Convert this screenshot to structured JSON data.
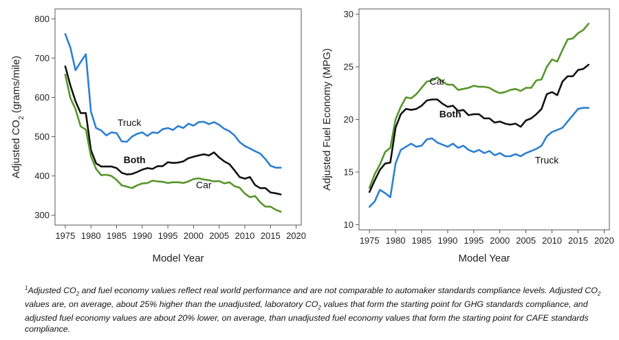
{
  "chart_data": [
    {
      "type": "line",
      "title": "",
      "xlabel": "Model Year",
      "ylabel_html": "Adjusted CO<tspan baseline-shift=\"sub\" font-size=\"10\">2</tspan> (grams/mile)",
      "xlim": [
        1973,
        2021
      ],
      "ylim": [
        275,
        825
      ],
      "xticks": [
        1975,
        1980,
        1985,
        1990,
        1995,
        2000,
        2005,
        2010,
        2015,
        2020
      ],
      "yticks": [
        300,
        400,
        500,
        600,
        700,
        800
      ],
      "grid": false,
      "x": [
        1975,
        1976,
        1977,
        1978,
        1979,
        1980,
        1981,
        1982,
        1983,
        1984,
        1985,
        1986,
        1987,
        1988,
        1989,
        1990,
        1991,
        1992,
        1993,
        1994,
        1995,
        1996,
        1997,
        1998,
        1999,
        2000,
        2001,
        2002,
        2003,
        2004,
        2005,
        2006,
        2007,
        2008,
        2009,
        2010,
        2011,
        2012,
        2013,
        2014,
        2015,
        2016,
        2017
      ],
      "series": [
        {
          "name": "Truck",
          "color": "#2b7fd1",
          "label_year": 1987.5,
          "label_value": 527,
          "bold": false,
          "values": [
            761,
            726,
            669,
            690,
            710,
            564,
            522,
            516,
            503,
            511,
            509,
            488,
            487,
            500,
            507,
            511,
            502,
            511,
            509,
            519,
            522,
            517,
            527,
            522,
            533,
            528,
            537,
            538,
            532,
            537,
            530,
            520,
            514,
            503,
            486,
            476,
            470,
            463,
            457,
            443,
            426,
            421,
            421
          ]
        },
        {
          "name": "Both",
          "color": "#111111",
          "label_year": 1988.5,
          "label_value": 433,
          "bold": true,
          "values": [
            679,
            630,
            590,
            560,
            560,
            466,
            432,
            424,
            424,
            424,
            420,
            408,
            404,
            405,
            410,
            416,
            420,
            418,
            425,
            425,
            435,
            433,
            434,
            437,
            445,
            449,
            452,
            455,
            452,
            460,
            447,
            437,
            430,
            414,
            397,
            393,
            397,
            377,
            369,
            369,
            358,
            356,
            353
          ]
        },
        {
          "name": "Car",
          "color": "#55952a",
          "label_year": 2002,
          "label_value": 369,
          "bold": false,
          "values": [
            658,
            598,
            570,
            526,
            518,
            450,
            418,
            402,
            403,
            400,
            390,
            376,
            373,
            369,
            376,
            381,
            382,
            388,
            386,
            385,
            382,
            384,
            384,
            382,
            386,
            392,
            394,
            391,
            389,
            386,
            387,
            381,
            384,
            374,
            370,
            355,
            346,
            349,
            333,
            322,
            322,
            314,
            309
          ]
        }
      ]
    },
    {
      "type": "line",
      "title": "",
      "xlabel": "Model Year",
      "ylabel": "Adjusted Fuel Economy (MPG)",
      "xlim": [
        1973,
        2021
      ],
      "ylim": [
        9.5,
        30.5
      ],
      "xticks": [
        1975,
        1980,
        1985,
        1990,
        1995,
        2000,
        2005,
        2010,
        2015,
        2020
      ],
      "yticks": [
        10,
        15,
        20,
        25,
        30
      ],
      "grid": false,
      "x": [
        1975,
        1976,
        1977,
        1978,
        1979,
        1980,
        1981,
        1982,
        1983,
        1984,
        1985,
        1986,
        1987,
        1988,
        1989,
        1990,
        1991,
        1992,
        1993,
        1994,
        1995,
        1996,
        1997,
        1998,
        1999,
        2000,
        2001,
        2002,
        2003,
        2004,
        2005,
        2006,
        2007,
        2008,
        2009,
        2010,
        2011,
        2012,
        2013,
        2014,
        2015,
        2016,
        2017
      ],
      "series": [
        {
          "name": "Car",
          "color": "#55952a",
          "label_year": 1988,
          "label_value": 23.3,
          "bold": false,
          "values": [
            13.5,
            14.8,
            15.7,
            16.9,
            17.3,
            20.0,
            21.2,
            22.1,
            22.0,
            22.4,
            23.0,
            23.6,
            23.7,
            24.0,
            23.6,
            23.3,
            23.3,
            22.8,
            22.9,
            23.0,
            23.2,
            23.1,
            23.1,
            23.0,
            22.7,
            22.5,
            22.6,
            22.8,
            22.9,
            22.7,
            23.0,
            23.0,
            23.7,
            23.8,
            25.0,
            25.7,
            25.5,
            26.6,
            27.6,
            27.7,
            28.2,
            28.5,
            29.1
          ]
        },
        {
          "name": "Both",
          "color": "#111111",
          "label_year": 1990.5,
          "label_value": 20.2,
          "bold": true,
          "values": [
            13.1,
            14.2,
            15.2,
            15.8,
            15.9,
            19.2,
            20.5,
            21.0,
            20.9,
            21.0,
            21.3,
            21.8,
            21.9,
            21.9,
            21.5,
            21.2,
            21.3,
            20.8,
            20.9,
            20.4,
            20.5,
            20.5,
            20.1,
            20.1,
            19.7,
            19.8,
            19.6,
            19.5,
            19.6,
            19.3,
            19.9,
            20.1,
            20.5,
            21.0,
            22.4,
            22.6,
            22.3,
            23.6,
            24.1,
            24.1,
            24.7,
            24.8,
            25.2
          ]
        },
        {
          "name": "Truck",
          "color": "#2b7fd1",
          "label_year": 2009,
          "label_value": 15.8,
          "bold": false,
          "values": [
            11.7,
            12.2,
            13.3,
            13.0,
            12.6,
            15.8,
            17.1,
            17.4,
            17.7,
            17.4,
            17.5,
            18.1,
            18.2,
            17.8,
            17.6,
            17.4,
            17.7,
            17.3,
            17.5,
            17.1,
            16.9,
            17.1,
            16.8,
            17.0,
            16.6,
            16.8,
            16.5,
            16.5,
            16.7,
            16.5,
            16.8,
            17.0,
            17.2,
            17.5,
            18.4,
            18.8,
            19.0,
            19.2,
            19.8,
            20.4,
            21.0,
            21.1,
            21.1
          ]
        }
      ]
    }
  ],
  "footnote": {
    "html": "<sup>1</sup>Adjusted CO<sub>2</sub> and fuel economy values reflect real world performance and are not comparable to automaker standards compliance levels. Adjusted CO<sub>2</sub> values are, on average, about 25% higher than the unadjusted, laboratory CO<sub>2</sub> values that form the starting point for GHG standards compliance, and adjusted fuel economy values are about 20% lower, on average, than unadjusted fuel economy values that form the starting point for CAFE standards compliance."
  }
}
